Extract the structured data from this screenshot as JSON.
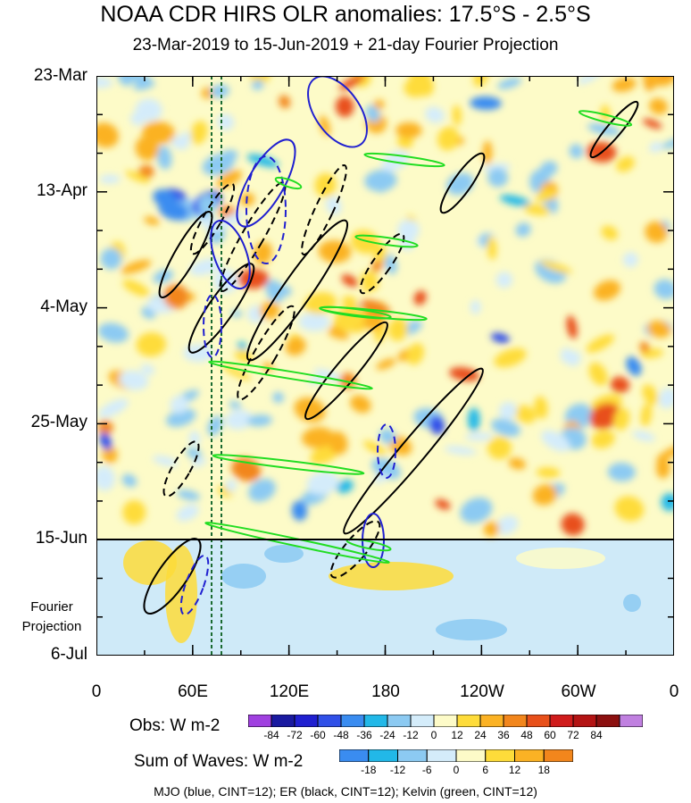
{
  "title": "NOAA CDR HIRS OLR anomalies: 17.5°S - 2.5°S",
  "subtitle": "23-Mar-2019 to 15-Jun-2019 + 21-day Fourier Projection",
  "y_ticks": [
    "23-Mar",
    "13-Apr",
    "4-May",
    "25-May",
    "15-Jun",
    "6-Jul"
  ],
  "projection_label": [
    "Fourier",
    "Projection"
  ],
  "x_ticks": [
    "0",
    "60E",
    "120E",
    "180",
    "120W",
    "60W",
    "0"
  ],
  "obs_colorbar": {
    "label": "Obs: W m-2",
    "levels": [
      "-84",
      "-72",
      "-60",
      "-48",
      "-36",
      "-24",
      "-12",
      "0",
      "12",
      "24",
      "36",
      "48",
      "60",
      "72",
      "84"
    ],
    "colors": [
      "#a040e0",
      "#1a1aa0",
      "#2020d0",
      "#3050e8",
      "#3a8cf0",
      "#22b8e8",
      "#8ccaf2",
      "#d4ecfa",
      "#fdfbc8",
      "#fedc3a",
      "#fbb224",
      "#f2861c",
      "#e8501a",
      "#d01c1c",
      "#b41414",
      "#8c1010",
      "#c080e0"
    ]
  },
  "waves_colorbar": {
    "label": "Sum of Waves: W m-2",
    "levels": [
      "-18",
      "-12",
      "-6",
      "0",
      "6",
      "12",
      "18"
    ],
    "colors": [
      "#3a8cf0",
      "#22b8e8",
      "#8ccaf2",
      "#d4ecfa",
      "#fdfbc8",
      "#fedc3a",
      "#fbb224",
      "#f2861c"
    ]
  },
  "caption": "MJO (blue, CINT=12); ER (black, CINT=12); Kelvin (green, CINT=12)",
  "chart_data": {
    "type": "heatmap",
    "x_axis": {
      "label": "",
      "range": [
        0,
        360
      ],
      "ticks": [
        0,
        60,
        120,
        180,
        240,
        300,
        360
      ]
    },
    "y_axis": {
      "label": "",
      "range": [
        "2019-03-23",
        "2019-07-06"
      ],
      "reversed": true
    },
    "obs_end": "2019-06-15",
    "projection_days": 21,
    "reference_longitudes": [
      72,
      80
    ],
    "wave_overlays": [
      {
        "name": "MJO",
        "color": "blue",
        "cint": 12
      },
      {
        "name": "ER",
        "color": "black",
        "cint": 12
      },
      {
        "name": "Kelvin",
        "color": "green",
        "cint": 12
      }
    ]
  }
}
